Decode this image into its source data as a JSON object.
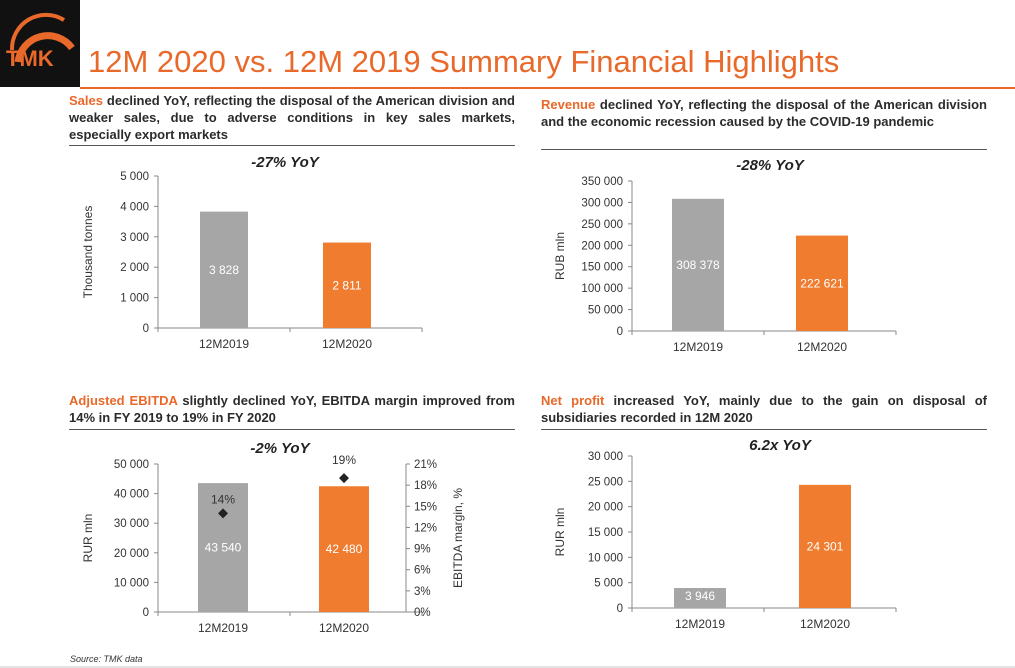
{
  "logo_text": "TMK",
  "page_title": "12M 2020 vs. 12M 2019 Summary Financial Highlights",
  "source": "Source: TMK data",
  "colors": {
    "accent": "#e8692a",
    "gray_bar": "#a6a6a6",
    "orange_bar": "#f07c2f",
    "text": "#2b2b2b"
  },
  "panels": {
    "sales": {
      "highlight": "Sales",
      "text": " declined YoY, reflecting the disposal of the American division and weaker sales, due to adverse conditions in key sales markets, especially export markets",
      "yoy": "-27% YoY"
    },
    "revenue": {
      "highlight": "Revenue",
      "text": " declined YoY, reflecting the disposal of the American division and the economic recession caused by the COVID-19 pandemic",
      "yoy": "-28% YoY"
    },
    "ebitda": {
      "highlight": "Adjusted EBITDA",
      "text": " slightly declined YoY, EBITDA margin improved from 14% in FY 2019 to 19% in FY 2020",
      "yoy": "-2% YoY"
    },
    "net_profit": {
      "highlight": "Net profit",
      "text": " increased YoY, mainly due to the gain on disposal of subsidiaries recorded in 12M 2020",
      "yoy": "6.2x YoY"
    }
  },
  "chart_data": [
    {
      "type": "bar",
      "id": "sales",
      "title": "-27% YoY",
      "categories": [
        "12M2019",
        "12M2020"
      ],
      "values": [
        3828,
        2811
      ],
      "value_labels": [
        "3 828",
        "2 811"
      ],
      "ylabel": "Thousand tonnes",
      "ylim": [
        0,
        5000
      ],
      "yticks": [
        0,
        1000,
        2000,
        3000,
        4000,
        5000
      ],
      "ytick_labels": [
        "0",
        "1 000",
        "2 000",
        "3 000",
        "4 000",
        "5 000"
      ]
    },
    {
      "type": "bar",
      "id": "revenue",
      "title": "-28% YoY",
      "categories": [
        "12M2019",
        "12M2020"
      ],
      "values": [
        308378,
        222621
      ],
      "value_labels": [
        "308 378",
        "222 621"
      ],
      "ylabel": "RUB mln",
      "ylim": [
        0,
        350000
      ],
      "yticks": [
        0,
        50000,
        100000,
        150000,
        200000,
        250000,
        300000,
        350000
      ],
      "ytick_labels": [
        "0",
        "50 000",
        "100 000",
        "150 000",
        "200 000",
        "250 000",
        "300 000",
        "350 000"
      ]
    },
    {
      "type": "bar",
      "id": "ebitda",
      "title": "-2% YoY",
      "categories": [
        "12M2019",
        "12M2020"
      ],
      "values": [
        43540,
        42480
      ],
      "value_labels": [
        "43 540",
        "42 480"
      ],
      "ylabel": "RUR mln",
      "ylim": [
        0,
        50000
      ],
      "yticks": [
        0,
        10000,
        20000,
        30000,
        40000,
        50000
      ],
      "ytick_labels": [
        "0",
        "10 000",
        "20 000",
        "30 000",
        "40 000",
        "50 000"
      ],
      "secondary": {
        "type": "scatter",
        "name": "EBITDA margin",
        "values": [
          14,
          19
        ],
        "value_labels": [
          "14%",
          "19%"
        ],
        "ylabel": "EBITDA margin, %",
        "ylim": [
          0,
          21
        ],
        "yticks": [
          0,
          3,
          6,
          9,
          12,
          15,
          18,
          21
        ],
        "ytick_labels": [
          "0%",
          "3%",
          "6%",
          "9%",
          "12%",
          "15%",
          "18%",
          "21%"
        ]
      }
    },
    {
      "type": "bar",
      "id": "net_profit",
      "title": "6.2x YoY",
      "categories": [
        "12M2019",
        "12M2020"
      ],
      "values": [
        3946,
        24301
      ],
      "value_labels": [
        "3 946",
        "24 301"
      ],
      "ylabel": "RUR mln",
      "ylim": [
        0,
        30000
      ],
      "yticks": [
        0,
        5000,
        10000,
        15000,
        20000,
        25000,
        30000
      ],
      "ytick_labels": [
        "0",
        "5 000",
        "10 000",
        "15 000",
        "20 000",
        "25 000",
        "30 000"
      ]
    }
  ]
}
